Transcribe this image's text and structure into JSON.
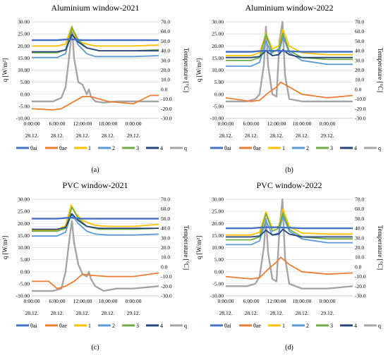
{
  "figure": {
    "panels": [
      {
        "id": "a",
        "caption": "(a)",
        "title": "Aluminium window-2021",
        "ylabel_left": "q [W/m²]",
        "ylabel_right": "Temperature [°C]",
        "y_left_ticks": [
          "30.00",
          "25.00",
          "20.00",
          "15.00",
          "10.00",
          "5.00",
          "0.00",
          "-5.00",
          "-10.00"
        ],
        "y_right_ticks": [
          "70.0",
          "60.0",
          "50.0",
          "40.0",
          "30.0",
          "20.0",
          "10.0",
          "0.0",
          "-10.0",
          "-20.0",
          "-30.0"
        ],
        "x_time_ticks": [
          "0:00:00",
          "6:00:00",
          "12:00:00",
          "18:00:00",
          "0:00:00"
        ],
        "x_date_ticks": [
          "28.12.",
          "28.12.",
          "28.12.",
          "28.12.",
          "29.12."
        ]
      },
      {
        "id": "b",
        "caption": "(b)",
        "title": "Aluminium window-2022",
        "ylabel_left": "q [W/m²]",
        "ylabel_right": "Temperature [°C]",
        "y_left_ticks": [
          "30.00",
          "25.00",
          "20.00",
          "15.00",
          "10.00",
          "5.00",
          "0.00",
          "-5.00",
          "-10.00"
        ],
        "y_right_ticks": [
          "70.0",
          "60.0",
          "50.0",
          "40.0",
          "30.0",
          "20.0",
          "10.0",
          "0.0",
          "-10.0",
          "-20.0",
          "-30.0"
        ],
        "x_time_ticks": [
          "0:00:00",
          "6:00:00",
          "12:00:00",
          "18:00:00",
          "0:00:00"
        ],
        "x_date_ticks": [
          "28.12.",
          "28.12.",
          "28.12.",
          "28.12.",
          "29.12."
        ]
      },
      {
        "id": "c",
        "caption": "(c)",
        "title": "PVC window-2021",
        "ylabel_left": "q [W/m²]",
        "ylabel_right": "Temperature [°C]",
        "y_left_ticks": [
          "30.00",
          "25.00",
          "20.00",
          "15.00",
          "10.00",
          "5.00",
          "0.00",
          "-5.00",
          "-10.00"
        ],
        "y_right_ticks": [
          "70.0",
          "60.0",
          "50.0",
          "40.0",
          "30.0",
          "20.0",
          "10.0",
          "0.0",
          "-10.0",
          "-20.0",
          "-30.0"
        ],
        "x_time_ticks": [
          "0:00:00",
          "6:00:00",
          "12:00:00",
          "18:00:00",
          "0:00:00"
        ],
        "x_date_ticks": [
          "28.12.",
          "28.12.",
          "28.12.",
          "28.12.",
          "29.12."
        ]
      },
      {
        "id": "d",
        "caption": "(d)",
        "title": "PVC window-2022",
        "ylabel_left": "q [W/m²]",
        "ylabel_right": "Temperature [°C]",
        "y_left_ticks": [
          "30.00",
          "25.00",
          "20.00",
          "15.00",
          "10.00",
          "5.00",
          "0.00",
          "-5.00",
          "-10.00"
        ],
        "y_right_ticks": [
          "70.0",
          "60.0",
          "50.0",
          "40.0",
          "30.0",
          "20.0",
          "10.0",
          "0.0",
          "-10.0",
          "-20.0",
          "-30.0"
        ],
        "x_time_ticks": [
          "0:00:00",
          "6:00:00",
          "12:00:00",
          "18:00:00",
          "0:00:00"
        ],
        "x_date_ticks": [
          "28.12.",
          "28.12.",
          "28.12.",
          "28.12.",
          "29.12."
        ]
      }
    ],
    "legend": [
      {
        "label": "θai",
        "color": "#4472c4"
      },
      {
        "label": "θae",
        "color": "#ed7d31"
      },
      {
        "label": "1",
        "color": "#ffc000"
      },
      {
        "label": "2",
        "color": "#5b9bd5"
      },
      {
        "label": "3",
        "color": "#70ad47"
      },
      {
        "label": "4",
        "color": "#264478"
      },
      {
        "label": "q",
        "color": "#a5a5a5"
      }
    ]
  },
  "chart_data": [
    {
      "type": "line",
      "title": "Aluminium window-2021",
      "x_unit": "hours from 28.12. 0:00",
      "x_range": [
        0,
        30
      ],
      "ylim_left": [
        -10,
        30
      ],
      "ylim_right": [
        -30,
        70
      ],
      "grid": true,
      "legend_position": "bottom",
      "series": [
        {
          "name": "θai",
          "axis": "right",
          "x": [
            0,
            6,
            9,
            12,
            18,
            24,
            30
          ],
          "y": [
            51,
            51,
            52,
            51,
            51,
            51,
            51
          ]
        },
        {
          "name": "θae",
          "axis": "left",
          "x": [
            0,
            5,
            7,
            9.5,
            12,
            14,
            18,
            24,
            28,
            30
          ],
          "y": [
            -6,
            -6.5,
            -6,
            -3.5,
            -1,
            -1,
            -3,
            -4,
            -0.5,
            -0.5
          ]
        },
        {
          "name": "1",
          "axis": "right",
          "x": [
            0,
            6,
            8,
            9.3,
            10.5,
            12,
            15,
            18,
            24,
            30
          ],
          "y": [
            45,
            45,
            47,
            64,
            53,
            48,
            45,
            45,
            45,
            46
          ]
        },
        {
          "name": "2",
          "axis": "right",
          "x": [
            0,
            6,
            8,
            9.3,
            11,
            13,
            15,
            18,
            24,
            30
          ],
          "y": [
            33,
            33,
            37,
            60,
            46,
            37,
            34,
            34,
            34,
            35
          ]
        },
        {
          "name": "3",
          "axis": "right",
          "x": [
            0,
            6,
            8,
            9.5,
            11,
            13,
            16,
            24,
            30
          ],
          "y": [
            38,
            38,
            41,
            64,
            51,
            43,
            40,
            40,
            41
          ]
        },
        {
          "name": "4",
          "axis": "right",
          "x": [
            0,
            6,
            8,
            9.5,
            11,
            13,
            16,
            24,
            30
          ],
          "y": [
            39,
            39,
            41,
            57,
            49,
            43,
            40,
            40,
            40
          ]
        },
        {
          "name": "q",
          "axis": "left",
          "x": [
            0,
            5,
            7,
            8,
            9,
            9.5,
            10,
            11,
            12,
            13,
            13.5,
            14,
            15,
            17,
            20,
            24,
            30
          ],
          "y": [
            -3,
            -3,
            -1.5,
            3,
            18,
            28,
            15,
            5,
            4,
            0,
            2,
            -1,
            -3,
            -3.5,
            -3,
            -3,
            -3
          ]
        }
      ]
    },
    {
      "type": "line",
      "title": "Aluminium window-2022",
      "x_unit": "hours from 28.12. 0:00",
      "x_range": [
        0,
        30
      ],
      "ylim_left": [
        -10,
        30
      ],
      "ylim_right": [
        -30,
        70
      ],
      "grid": true,
      "legend_position": "bottom",
      "series": [
        {
          "name": "θai",
          "axis": "right",
          "x": [
            0,
            6,
            9,
            12,
            18,
            24,
            30
          ],
          "y": [
            39,
            39,
            40,
            40,
            39,
            39,
            39
          ]
        },
        {
          "name": "θae",
          "axis": "left",
          "x": [
            0,
            6,
            8,
            10,
            12,
            13,
            15,
            18,
            24,
            30
          ],
          "y": [
            -1.5,
            -3,
            -2.5,
            0.5,
            3,
            5,
            3,
            0,
            -1.5,
            -0.5
          ]
        },
        {
          "name": "1",
          "axis": "right",
          "x": [
            0,
            6,
            8,
            9.5,
            11,
            12.5,
            13.5,
            15,
            18,
            24,
            30
          ],
          "y": [
            35,
            35,
            38,
            58,
            42,
            45,
            62,
            45,
            38,
            36,
            36
          ]
        },
        {
          "name": "2",
          "axis": "right",
          "x": [
            0,
            6,
            8,
            9.5,
            11,
            12.5,
            13.5,
            15,
            18,
            24,
            30
          ],
          "y": [
            24,
            24,
            28,
            50,
            35,
            36,
            55,
            38,
            30,
            26,
            26
          ]
        },
        {
          "name": "3",
          "axis": "right",
          "x": [
            0,
            6,
            8,
            9.5,
            11,
            12.5,
            13.5,
            15,
            18,
            24,
            30
          ],
          "y": [
            30,
            30,
            33,
            57,
            38,
            42,
            58,
            40,
            33,
            31,
            31
          ]
        },
        {
          "name": "4",
          "axis": "right",
          "x": [
            0,
            6,
            8,
            9.5,
            11,
            12.5,
            13.5,
            15,
            18,
            24,
            30
          ],
          "y": [
            33,
            33,
            34,
            40,
            35,
            36,
            41,
            36,
            33,
            33,
            33
          ]
        },
        {
          "name": "q",
          "axis": "left",
          "x": [
            0,
            5,
            7,
            8,
            9,
            9.5,
            10,
            11,
            12,
            12.7,
            13.4,
            14,
            15,
            18,
            24,
            30
          ],
          "y": [
            -3,
            -3,
            -2,
            0,
            12,
            28,
            12,
            0,
            -1,
            22,
            30,
            8,
            -2,
            -3,
            -3,
            -3
          ]
        }
      ]
    },
    {
      "type": "line",
      "title": "PVC window-2021",
      "x_unit": "hours from 28.12. 0:00",
      "x_range": [
        0,
        30
      ],
      "ylim_left": [
        -10,
        30
      ],
      "ylim_right": [
        -30,
        70
      ],
      "grid": true,
      "legend_position": "bottom",
      "series": [
        {
          "name": "θai",
          "axis": "right",
          "x": [
            0,
            6,
            9,
            12,
            18,
            24,
            30
          ],
          "y": [
            50,
            50,
            51,
            50,
            50,
            50,
            50
          ]
        },
        {
          "name": "θae",
          "axis": "left",
          "x": [
            0,
            4,
            6,
            8,
            10,
            12,
            14,
            18,
            24,
            30
          ],
          "y": [
            -4,
            -4,
            -7,
            -6,
            -4,
            -1,
            -1.5,
            -2,
            -2,
            -0.5
          ]
        },
        {
          "name": "1",
          "axis": "right",
          "x": [
            0,
            6,
            8,
            9.3,
            10.5,
            12,
            15,
            18,
            24,
            30
          ],
          "y": [
            38,
            38,
            43,
            64,
            55,
            48,
            43,
            42,
            42,
            44
          ]
        },
        {
          "name": "2",
          "axis": "right",
          "x": [
            0,
            6,
            8,
            9.3,
            11,
            13,
            15,
            18,
            24,
            30
          ],
          "y": [
            32,
            32,
            36,
            55,
            45,
            37,
            34,
            33,
            33,
            34
          ]
        },
        {
          "name": "3",
          "axis": "right",
          "x": [
            0,
            6,
            8,
            9.5,
            11,
            13,
            16,
            24,
            30
          ],
          "y": [
            37,
            37,
            40,
            62,
            50,
            42,
            39,
            39,
            40
          ]
        },
        {
          "name": "4",
          "axis": "right",
          "x": [
            0,
            6,
            8,
            9.5,
            11,
            13,
            16,
            24,
            30
          ],
          "y": [
            39,
            39,
            41,
            55,
            48,
            42,
            40,
            40,
            40
          ]
        },
        {
          "name": "q",
          "axis": "left",
          "x": [
            0,
            5,
            7,
            8,
            9,
            9.5,
            10,
            11,
            12,
            13,
            13.5,
            14,
            15,
            17,
            20,
            24,
            30
          ],
          "y": [
            -8,
            -8,
            -7,
            0,
            15,
            21,
            12,
            3,
            -1,
            -2,
            0,
            -3,
            -6,
            -8,
            -7,
            -7,
            -6
          ]
        }
      ]
    },
    {
      "type": "line",
      "title": "PVC window-2022",
      "x_unit": "hours from 28.12. 0:00",
      "x_range": [
        0,
        30
      ],
      "ylim_left": [
        -10,
        30
      ],
      "ylim_right": [
        -30,
        70
      ],
      "grid": true,
      "legend_position": "bottom",
      "series": [
        {
          "name": "θai",
          "axis": "right",
          "x": [
            0,
            6,
            9,
            12,
            18,
            24,
            30
          ],
          "y": [
            40,
            40,
            41,
            41,
            40,
            40,
            40
          ]
        },
        {
          "name": "θae",
          "axis": "left",
          "x": [
            0,
            6,
            8,
            10,
            12,
            13,
            15,
            18,
            24,
            30
          ],
          "y": [
            -2,
            -3,
            -2.5,
            1,
            4,
            6,
            3,
            0,
            -1,
            -0.5
          ]
        },
        {
          "name": "1",
          "axis": "right",
          "x": [
            0,
            6,
            8,
            9.5,
            11,
            12.5,
            13.5,
            15,
            18,
            24,
            30
          ],
          "y": [
            33,
            33,
            36,
            57,
            40,
            42,
            60,
            42,
            35,
            34,
            34
          ]
        },
        {
          "name": "2",
          "axis": "right",
          "x": [
            0,
            6,
            8,
            9.5,
            11,
            12.5,
            13.5,
            15,
            18,
            24,
            30
          ],
          "y": [
            23,
            23,
            27,
            48,
            33,
            35,
            53,
            37,
            29,
            25,
            25
          ]
        },
        {
          "name": "3",
          "axis": "right",
          "x": [
            0,
            6,
            8,
            9.5,
            11,
            12.5,
            13.5,
            15,
            18,
            24,
            30
          ],
          "y": [
            28,
            28,
            31,
            55,
            37,
            40,
            56,
            39,
            31,
            29,
            29
          ]
        },
        {
          "name": "4",
          "axis": "right",
          "x": [
            0,
            6,
            8,
            9.5,
            11,
            12.5,
            13.5,
            15,
            18,
            24,
            30
          ],
          "y": [
            31,
            31,
            32,
            38,
            33,
            34,
            39,
            34,
            31,
            31,
            31
          ]
        },
        {
          "name": "q",
          "axis": "left",
          "x": [
            0,
            5,
            7,
            8,
            9,
            9.5,
            10,
            11,
            12,
            12.7,
            13.4,
            14,
            15,
            18,
            24,
            30
          ],
          "y": [
            -6,
            -6,
            -5,
            -2,
            10,
            22,
            8,
            -3,
            -4,
            18,
            30,
            6,
            -5,
            -7,
            -7,
            -6
          ]
        }
      ]
    }
  ]
}
